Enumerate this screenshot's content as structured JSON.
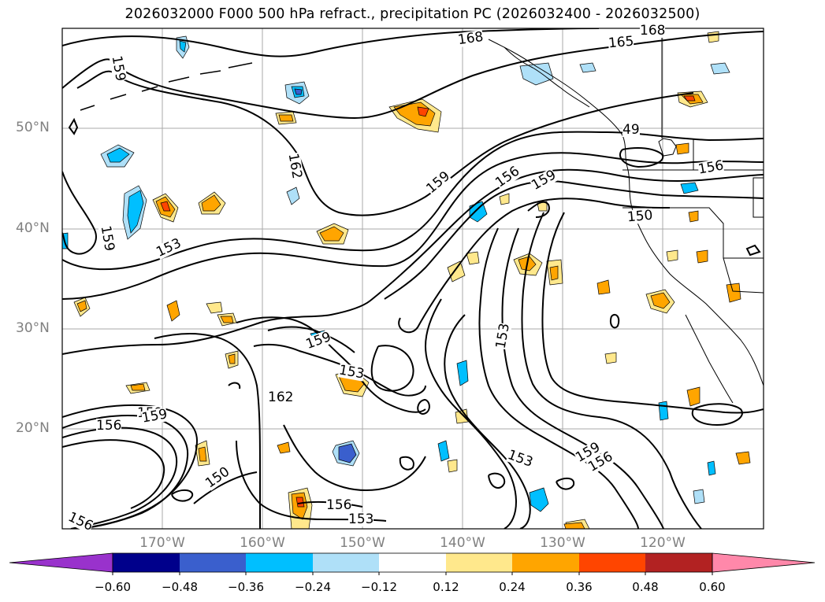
{
  "title": "2026032000 F000 500 hPa refract., precipitation PC (2026032400 - 2026032500)",
  "map": {
    "projection": "lat-lon",
    "lon_range_deg": [
      -180,
      -110
    ],
    "lat_range_deg": [
      10,
      60
    ],
    "coastlines": "North America west coast, Alaska panhandle, Aleutians",
    "gridlines": true,
    "grid_color": "#a9a9a9",
    "lat_labels": [
      "50°N",
      "40°N",
      "30°N",
      "20°N"
    ],
    "lon_labels": [
      "170°W",
      "160°W",
      "150°W",
      "140°W",
      "130°W",
      "120°W"
    ]
  },
  "contours": {
    "field": "500 hPa refractivity",
    "line_color": "#000000",
    "labels": [
      "168",
      "165",
      "168",
      "159",
      "162",
      "159",
      "156",
      "159",
      "150",
      "156",
      "159",
      "153",
      "159",
      "153",
      "159",
      "153",
      "162",
      "156",
      "159",
      "153",
      "156",
      "159",
      "150",
      "156",
      "153",
      "156",
      "49"
    ]
  },
  "precipitation_pc": {
    "colormap": [
      {
        "range": "< -0.60",
        "color": "#9932cc"
      },
      {
        "range": "-0.60 to -0.48",
        "color": "#00008b"
      },
      {
        "range": "-0.48 to -0.36",
        "color": "#3a5fcd"
      },
      {
        "range": "-0.36 to -0.24",
        "color": "#00bfff"
      },
      {
        "range": "-0.24 to -0.12",
        "color": "#afe0f8"
      },
      {
        "range": "-0.12 to 0.12",
        "color": "#ffffff"
      },
      {
        "range": "0.12 to 0.24",
        "color": "#ffe88c"
      },
      {
        "range": "0.24 to 0.36",
        "color": "#ffa500"
      },
      {
        "range": "0.36 to 0.48",
        "color": "#ff4500"
      },
      {
        "range": "0.48 to 0.60",
        "color": "#b22222"
      },
      {
        "range": "> 0.60",
        "color": "#ff88aa"
      }
    ]
  },
  "colorbar": {
    "ticks": [
      "−0.60",
      "−0.48",
      "−0.36",
      "−0.24",
      "−0.12",
      "0.12",
      "0.24",
      "0.36",
      "0.48",
      "0.60"
    ],
    "extend": "both"
  }
}
